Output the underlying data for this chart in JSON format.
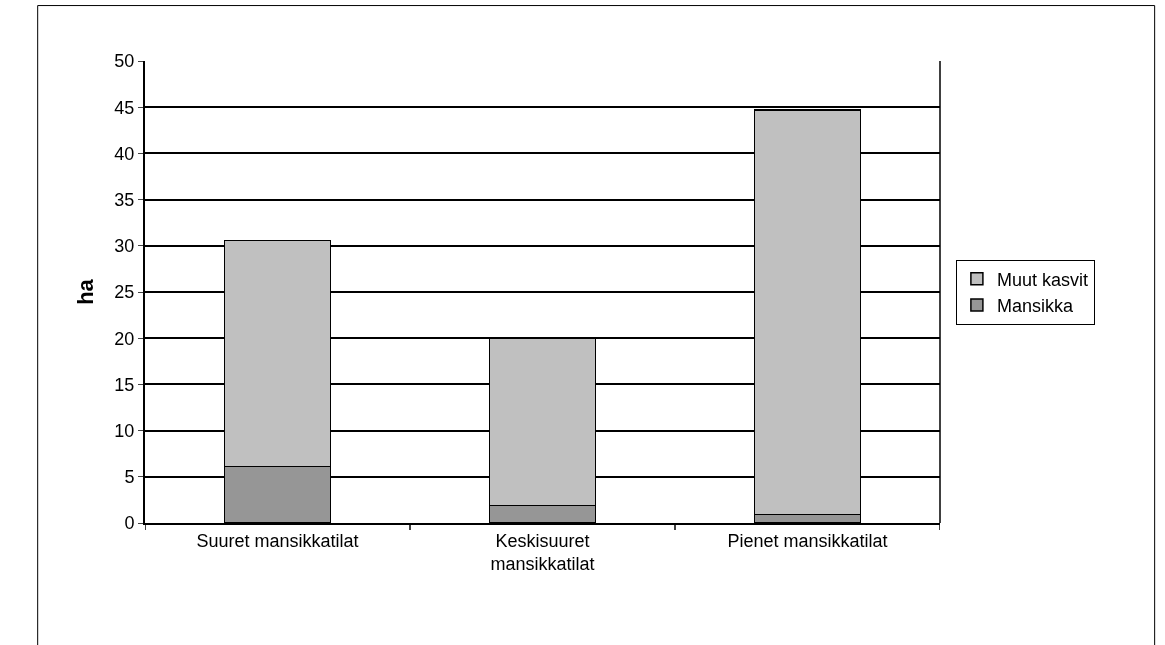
{
  "chart_data": {
    "type": "bar",
    "stacked": true,
    "ylabel": "ha",
    "categories": [
      "Suuret mansikkatilat",
      "Keskisuuret mansikkatilat",
      "Pienet mansikkatilat"
    ],
    "series": [
      {
        "name": "Mansikka",
        "color": "#969696",
        "values": [
          6.1,
          1.9,
          0.9
        ]
      },
      {
        "name": "Muut kasvit",
        "color": "#c0c0c0",
        "values": [
          24.5,
          18.1,
          43.8
        ]
      }
    ],
    "ylim": [
      0,
      50
    ],
    "yticks": [
      0,
      5,
      10,
      15,
      20,
      25,
      30,
      35,
      40,
      45,
      50
    ],
    "grid": "y",
    "legend": "right"
  }
}
